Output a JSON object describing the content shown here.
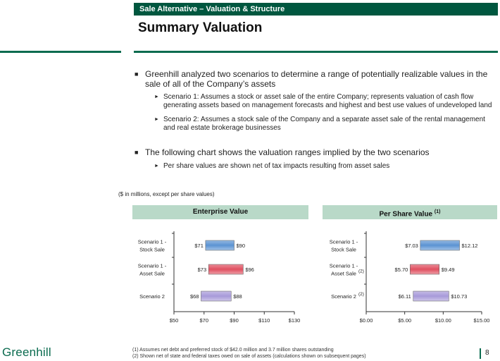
{
  "header": {
    "section": "Sale Alternative – Valuation & Structure",
    "title": "Summary Valuation"
  },
  "bullets": [
    {
      "text": "Greenhill analyzed two scenarios to determine a range of potentially realizable values in the sale of all of the Company’s assets",
      "subs": [
        "Scenario 1: Assumes a stock or asset sale of the entire Company; represents valuation of cash flow generating assets based on management forecasts and highest and best use values of undeveloped land",
        "Scenario 2: Assumes a stock sale of the Company and a separate asset sale of the rental management and real estate brokerage businesses"
      ]
    },
    {
      "text": "The following chart shows the valuation ranges implied by the two scenarios",
      "subs": [
        "Per share values are shown net of tax impacts resulting from asset sales"
      ]
    }
  ],
  "units_note": "($ in millions, except per share values)",
  "charts": {
    "enterprise": {
      "header": "Enterprise Value"
    },
    "per_share": {
      "header": "Per Share Value",
      "header_note": "(1)"
    }
  },
  "chart_data": [
    {
      "type": "bar",
      "subtype": "floating-range",
      "title": "Enterprise Value",
      "categories": [
        "Scenario 1 - Stock Sale",
        "Scenario 1 - Asset Sale",
        "Scenario 2"
      ],
      "cat_lines": [
        [
          "Scenario 1 -",
          "Stock Sale"
        ],
        [
          "Scenario 1 -",
          "Asset Sale"
        ],
        [
          "Scenario 2"
        ]
      ],
      "cat_notes": [
        "",
        "",
        ""
      ],
      "low": [
        71,
        73,
        68
      ],
      "high": [
        90,
        96,
        88
      ],
      "low_labels": [
        "$71",
        "$73",
        "$68"
      ],
      "high_labels": [
        "$90",
        "$96",
        "$88"
      ],
      "colors": [
        "#5b93d3",
        "#e05060",
        "#a79ad9"
      ],
      "xlim": [
        50,
        130
      ],
      "ticks": [
        50,
        70,
        90,
        110,
        130
      ],
      "tick_labels": [
        "$50",
        "$70",
        "$90",
        "$110",
        "$130"
      ]
    },
    {
      "type": "bar",
      "subtype": "floating-range",
      "title": "Per Share Value",
      "categories": [
        "Scenario 1 - Stock Sale",
        "Scenario 1 - Asset Sale",
        "Scenario 2"
      ],
      "cat_lines": [
        [
          "Scenario 1 -",
          "Stock Sale"
        ],
        [
          "Scenario 1 -",
          "Asset Sale"
        ],
        [
          "Scenario 2"
        ]
      ],
      "cat_notes": [
        "",
        "(2)",
        "(2)"
      ],
      "low": [
        7.03,
        5.7,
        6.11
      ],
      "high": [
        12.12,
        9.49,
        10.73
      ],
      "low_labels": [
        "$7.03",
        "$5.70",
        "$6.11"
      ],
      "high_labels": [
        "$12.12",
        "$9.49",
        "$10.73"
      ],
      "colors": [
        "#5b93d3",
        "#e05060",
        "#a79ad9"
      ],
      "xlim": [
        0,
        15
      ],
      "ticks": [
        0,
        5,
        10,
        15
      ],
      "tick_labels": [
        "$0.00",
        "$5.00",
        "$10.00",
        "$15.00"
      ]
    }
  ],
  "footnotes": [
    "(1)  Assumes net debt and preferred stock of $42.0 million and 3.7 million shares outstanding",
    "(2)  Shown net of state and federal taxes owed on sale of assets (calculations shown on subsequent pages)"
  ],
  "logo": "Greenhill",
  "page_number": "8"
}
